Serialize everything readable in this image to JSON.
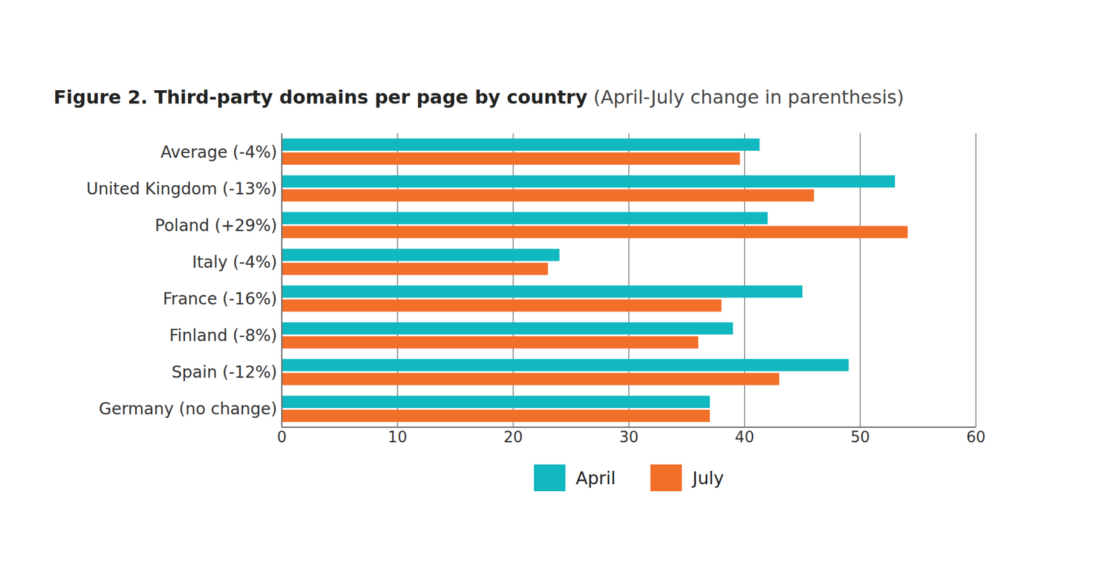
{
  "chart_data": {
    "type": "bar",
    "orientation": "horizontal",
    "title": "Figure 2. Third-party domains per page by country",
    "subtitle": "(April-July change in parenthesis)",
    "categories": [
      "Average (-4%)",
      "United Kingdom (-13%)",
      "Poland (+29%)",
      "Italy (-4%)",
      "France (-16%)",
      "Finland (-8%)",
      "Spain (-12%)",
      "Germany (no change)"
    ],
    "series": [
      {
        "name": "April",
        "color": "#12b8c0",
        "values": [
          41.3,
          53,
          42,
          24,
          45,
          39,
          49,
          37
        ]
      },
      {
        "name": "July",
        "color": "#f26f2a",
        "values": [
          39.6,
          46,
          54.1,
          23,
          38,
          36,
          43,
          37
        ]
      }
    ],
    "xlim": [
      0,
      60
    ],
    "xticks": [
      0,
      10,
      20,
      30,
      40,
      50,
      60
    ],
    "grid": true,
    "legend": "bottom"
  }
}
